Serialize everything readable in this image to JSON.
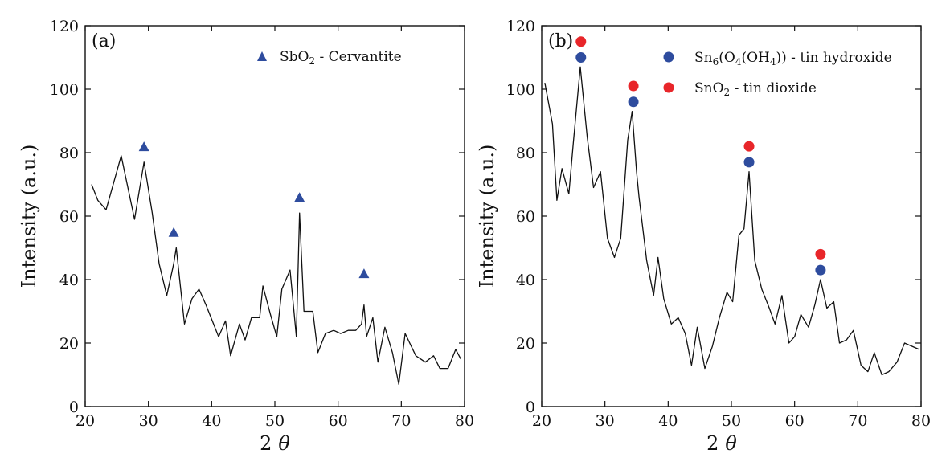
{
  "chart_data": [
    {
      "type": "line",
      "panel_label": "(a)",
      "xlabel_main": "2",
      "xlabel_theta": "θ",
      "ylabel": "Intensity (a.u.)",
      "xlim": [
        20,
        80
      ],
      "ylim": [
        0,
        120
      ],
      "xticks": [
        20,
        30,
        40,
        50,
        60,
        70,
        80
      ],
      "yticks": [
        0,
        20,
        40,
        60,
        80,
        100,
        120
      ],
      "grid": false,
      "legend_position": "top-right",
      "series": [
        {
          "x": [
            21,
            22,
            23.3,
            25.7,
            27.8,
            29.3,
            30.6,
            31.7,
            32.9,
            34.0,
            34.4,
            35.7,
            36.9,
            38.0,
            39.1,
            41.1,
            42.2,
            43.0,
            44.4,
            45.3,
            46.3,
            47.6,
            48.1,
            49.3,
            50.3,
            51.1,
            52.4,
            53.4,
            53.9,
            54.6,
            56.0,
            56.8,
            58.0,
            59.3,
            60.4,
            61.6,
            62.8,
            63.7,
            64.1,
            64.5,
            65.5,
            66.3,
            67.4,
            68.6,
            69.6,
            70.6,
            72.3,
            73.8,
            75.1,
            76.1,
            77.4,
            78.6,
            79.4
          ],
          "y": [
            70,
            65,
            62,
            79,
            59,
            77,
            61,
            45,
            35,
            45,
            50,
            26,
            34,
            37,
            32,
            22,
            27,
            16,
            26,
            21,
            28,
            28,
            38,
            29,
            22,
            37,
            43,
            22,
            61,
            30,
            30,
            17,
            23,
            24,
            23,
            24,
            24,
            26,
            32,
            22,
            28,
            14,
            25,
            17,
            7,
            23,
            16,
            14,
            16,
            12,
            12,
            18,
            15
          ]
        }
      ],
      "markers": [
        {
          "name": "SbO2 - Cervantite",
          "color": "#2e4c9e",
          "shape": "triangle",
          "x": [
            29.3,
            34.0,
            53.9,
            64.1
          ],
          "y": [
            82,
            55,
            66,
            42
          ]
        }
      ],
      "legend": [
        {
          "label_main": "SbO",
          "label_sub": "2",
          "label_rest": " - Cervantite",
          "color": "#2e4c9e",
          "shape": "triangle"
        }
      ]
    },
    {
      "type": "line",
      "panel_label": "(b)",
      "xlabel_main": "2",
      "xlabel_theta": "θ",
      "ylabel": "Intensity (a.u.)",
      "xlim": [
        20,
        80
      ],
      "ylim": [
        0,
        120
      ],
      "xticks": [
        20,
        30,
        40,
        50,
        60,
        70,
        80
      ],
      "yticks": [
        0,
        20,
        40,
        60,
        80,
        100,
        120
      ],
      "grid": false,
      "legend_position": "top-right",
      "series": [
        {
          "x": [
            20.5,
            21.7,
            22.4,
            23.2,
            24.3,
            25.0,
            26.1,
            27.2,
            28.2,
            29.3,
            30.4,
            31.5,
            32.5,
            33.6,
            34.3,
            35.0,
            35.4,
            36.6,
            37.7,
            38.4,
            39.3,
            40.5,
            41.6,
            42.7,
            43.7,
            44.6,
            45.8,
            47.0,
            48.1,
            49.3,
            50.2,
            51.2,
            52.0,
            52.8,
            53.7,
            54.8,
            56.0,
            56.9,
            58.0,
            59.1,
            60.0,
            61.0,
            62.2,
            63.2,
            64.1,
            65.1,
            66.2,
            67.1,
            68.2,
            69.3,
            70.5,
            71.6,
            72.6,
            73.8,
            74.9,
            76.2,
            77.4,
            79.7
          ],
          "y": [
            102,
            89,
            65,
            75,
            67,
            83,
            107,
            85,
            69,
            74,
            53,
            47,
            53,
            84,
            93,
            74,
            66,
            46,
            35,
            47,
            34,
            26,
            28,
            23,
            13,
            25,
            12,
            19,
            28,
            36,
            33,
            54,
            56,
            74,
            46,
            37,
            31,
            26,
            35,
            20,
            22,
            29,
            25,
            32,
            40,
            31,
            33,
            20,
            21,
            24,
            13,
            11,
            17,
            10,
            11,
            14,
            20,
            18
          ]
        }
      ],
      "markers": [
        {
          "name": "Sn6(O4(OH4)) - tin hydroxide",
          "color": "#2e4c9e",
          "shape": "circle",
          "x": [
            26.2,
            34.5,
            52.8,
            64.1
          ],
          "y": [
            110,
            96,
            77,
            43
          ]
        },
        {
          "name": "SnO2 - tin dioxide",
          "color": "#e8262a",
          "shape": "circle",
          "x": [
            26.2,
            34.5,
            52.8,
            64.1
          ],
          "y": [
            115,
            101,
            82,
            48
          ]
        }
      ],
      "legend": [
        {
          "label_main": "Sn",
          "label_sub": "6",
          "label_mid": "(O",
          "label_sub2": "4",
          "label_mid2": "(OH",
          "label_sub3": "4",
          "label_rest": ")) - tin hydroxide",
          "color": "#2e4c9e",
          "shape": "circle"
        },
        {
          "label_main": "SnO",
          "label_sub": "2",
          "label_rest": " - tin dioxide",
          "color": "#e8262a",
          "shape": "circle"
        }
      ]
    }
  ]
}
